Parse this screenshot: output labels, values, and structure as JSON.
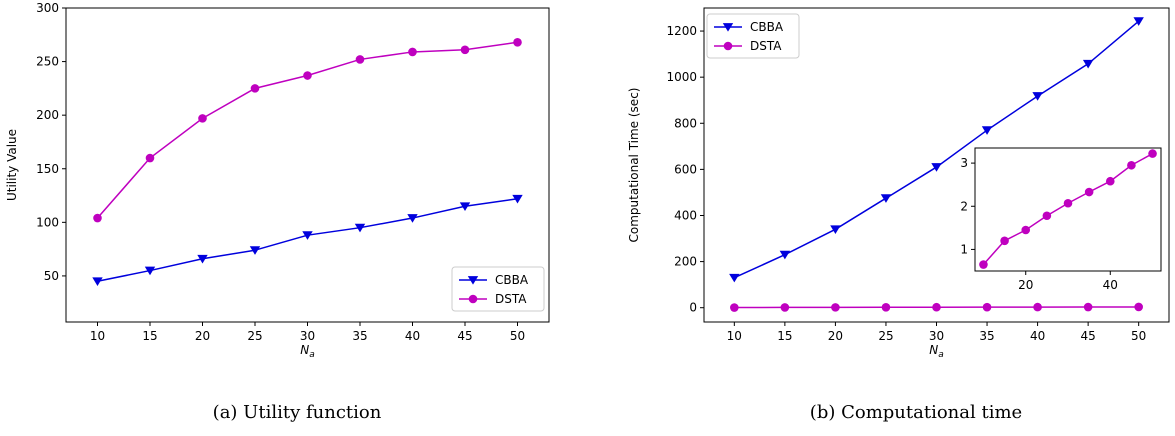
{
  "figure": {
    "caption_a": "(a) Utility function",
    "caption_b": "(b) Computational time"
  },
  "colors": {
    "cbba": "#0000dd",
    "dsta": "#bf00bf"
  },
  "chart_data": [
    {
      "type": "line",
      "x": [
        10,
        15,
        20,
        25,
        30,
        35,
        40,
        45,
        50
      ],
      "series": [
        {
          "name": "CBBA",
          "marker": "triangle-down",
          "values": [
            45,
            55,
            66,
            74,
            88,
            95,
            104,
            115,
            122
          ]
        },
        {
          "name": "DSTA",
          "marker": "circle",
          "values": [
            104,
            160,
            197,
            225,
            237,
            252,
            259,
            261,
            268
          ]
        }
      ],
      "xlabel_base": "N",
      "xlabel_sub": "a",
      "ylabel": "Utility Value",
      "xlim": [
        7,
        53
      ],
      "ylim": [
        7,
        300
      ],
      "xticks": [
        10,
        15,
        20,
        25,
        30,
        35,
        40,
        45,
        50
      ],
      "yticks": [
        50,
        100,
        150,
        200,
        250,
        300
      ],
      "legend": "lower-right",
      "grid": false
    },
    {
      "type": "line",
      "x": [
        10,
        15,
        20,
        25,
        30,
        35,
        40,
        45,
        50
      ],
      "series": [
        {
          "name": "CBBA",
          "marker": "triangle-down",
          "values": [
            130,
            230,
            340,
            475,
            610,
            770,
            918,
            1058,
            1243
          ]
        },
        {
          "name": "DSTA",
          "marker": "circle",
          "values": [
            0.65,
            1.2,
            1.45,
            1.78,
            2.07,
            2.33,
            2.58,
            2.95,
            3.22
          ]
        }
      ],
      "xlabel_base": "N",
      "xlabel_sub": "a",
      "ylabel": "Computational Time (sec)",
      "xlim": [
        7,
        53
      ],
      "ylim": [
        -62,
        1300
      ],
      "xticks": [
        10,
        15,
        20,
        25,
        30,
        35,
        40,
        45,
        50
      ],
      "yticks": [
        0,
        200,
        400,
        600,
        800,
        1000,
        1200
      ],
      "legend": "upper-left",
      "grid": false,
      "inset": {
        "series": "DSTA",
        "xlim": [
          8,
          52
        ],
        "ylim": [
          0.5,
          3.35
        ],
        "xticks": [
          20,
          40
        ],
        "yticks": [
          1,
          2,
          3
        ]
      }
    }
  ]
}
